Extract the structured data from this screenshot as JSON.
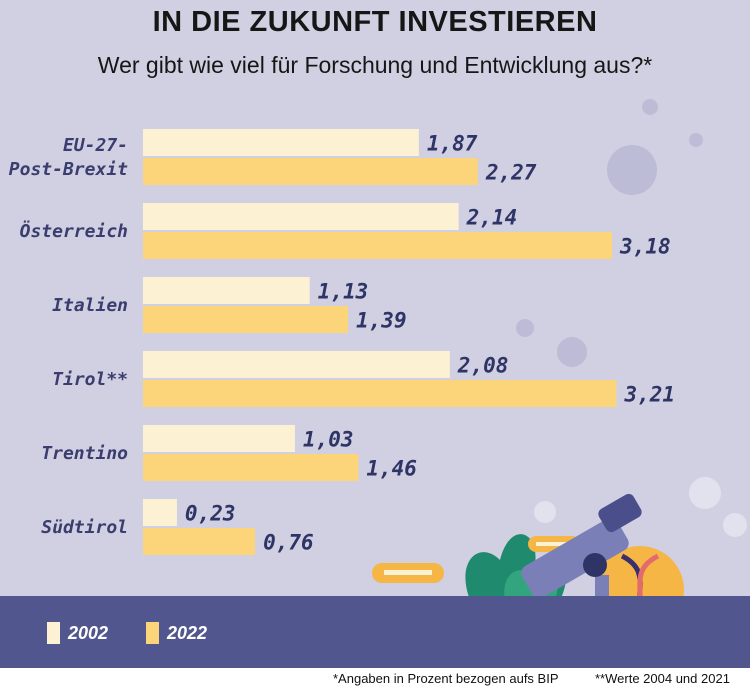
{
  "header": {
    "title": "IN DIE ZUKUNFT INVESTIEREN",
    "subtitle": "Wer gibt wie viel für Forschung und Entwicklung aus?*"
  },
  "chart_data": {
    "type": "bar",
    "orientation": "horizontal",
    "title": "IN DIE ZUKUNFT INVESTIEREN",
    "subtitle": "Wer gibt wie viel für Forschung und Entwicklung aus?*",
    "categories": [
      "EU-27-\nPost-Brexit",
      "Österreich",
      "Italien",
      "Tirol**",
      "Trentino",
      "Südtirol"
    ],
    "series": [
      {
        "name": "2002",
        "values": [
          1.87,
          2.14,
          1.13,
          2.08,
          1.03,
          0.23
        ],
        "labels": [
          "1,87",
          "2,14",
          "1,13",
          "2,08",
          "1,03",
          "0,23"
        ],
        "color": "#fdf1d3"
      },
      {
        "name": "2022",
        "values": [
          2.27,
          3.18,
          1.39,
          3.21,
          1.46,
          0.76
        ],
        "labels": [
          "2,27",
          "3,18",
          "1,39",
          "3,21",
          "1,46",
          "0,76"
        ],
        "color": "#fcd47a"
      }
    ],
    "xlim": [
      0,
      3.21
    ],
    "grid": false,
    "legend": "bottom-left"
  },
  "legend": {
    "items": [
      {
        "label": "2002",
        "color": "#fdf1d3"
      },
      {
        "label": "2022",
        "color": "#fcd47a"
      }
    ]
  },
  "footnotes": {
    "left": "*Angaben in Prozent bezogen aufs BIP",
    "right": "**Werte 2004 und 2021"
  },
  "illustration": {
    "description_icon": "microscope-books-dna-icon"
  }
}
